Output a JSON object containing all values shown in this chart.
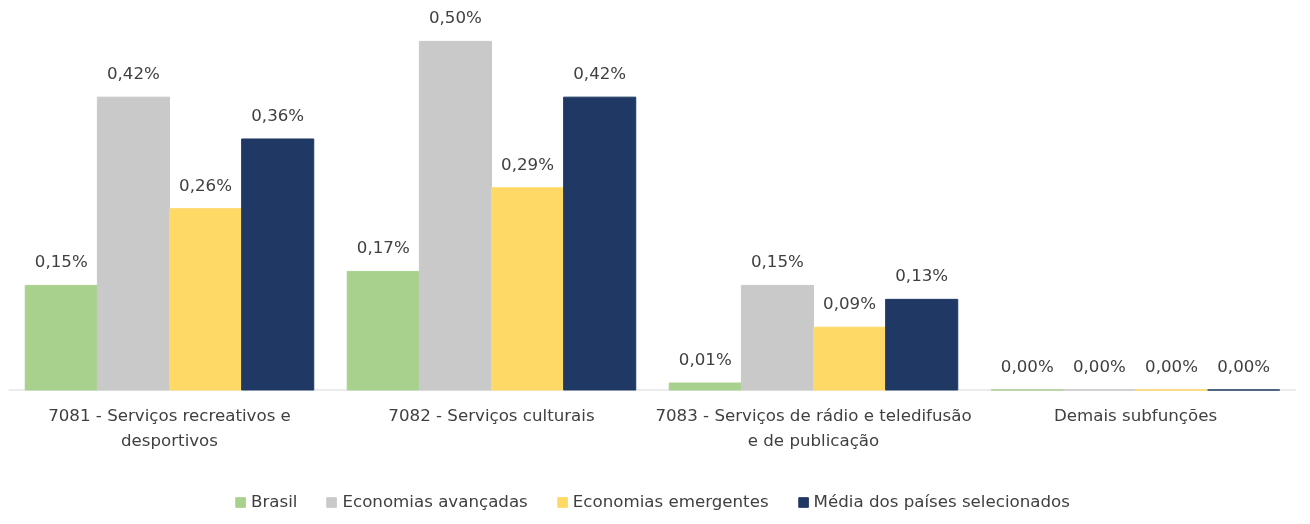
{
  "chart_data": {
    "type": "bar",
    "categories": [
      "7081 - Serviços recreativos e desportivos",
      "7082 - Serviços culturais",
      "7083 - Serviços de rádio e teledifusão e de publicação",
      "Demais subfunções"
    ],
    "series": [
      {
        "name": "Brasil",
        "color": "#a9d18e",
        "values": [
          0.15,
          0.17,
          0.01,
          0.0
        ],
        "value_labels": [
          "0,15%",
          "0,17%",
          "0,01%",
          "0,00%"
        ]
      },
      {
        "name": "Economias avançadas",
        "color": "#c9c9c9",
        "values": [
          0.42,
          0.5,
          0.15,
          0.0
        ],
        "value_labels": [
          "0,42%",
          "0,50%",
          "0,15%",
          "0,00%"
        ]
      },
      {
        "name": "Economias emergentes",
        "color": "#ffd966",
        "values": [
          0.26,
          0.29,
          0.09,
          0.0
        ],
        "value_labels": [
          "0,26%",
          "0,29%",
          "0,09%",
          "0,00%"
        ]
      },
      {
        "name": "Média dos países selecionados",
        "color": "#203864",
        "values": [
          0.36,
          0.42,
          0.13,
          0.0
        ],
        "value_labels": [
          "0,36%",
          "0,42%",
          "0,13%",
          "0,00%"
        ]
      }
    ],
    "legend": "bottom"
  }
}
